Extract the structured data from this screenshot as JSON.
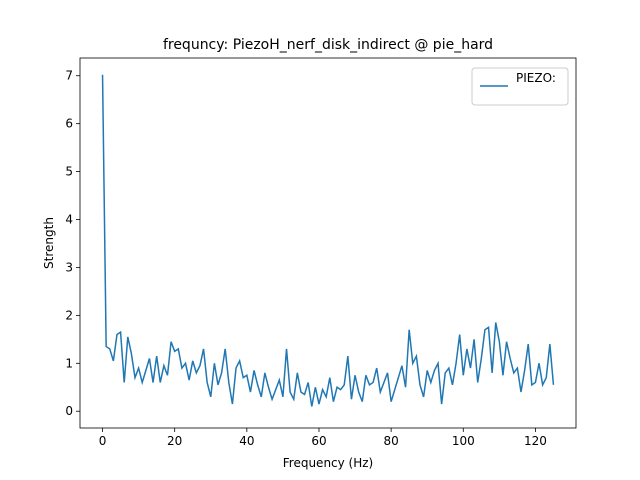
{
  "chart_data": {
    "type": "line",
    "title": "frequncy: PiezoH_nerf_disk_indirect @ pie_hard",
    "xlabel": "Frequency (Hz)",
    "ylabel": "Strength",
    "x": [
      0,
      1,
      2,
      3,
      4,
      5,
      6,
      7,
      8,
      9,
      10,
      11,
      12,
      13,
      14,
      15,
      16,
      17,
      18,
      19,
      20,
      21,
      22,
      23,
      24,
      25,
      26,
      27,
      28,
      29,
      30,
      31,
      32,
      33,
      34,
      35,
      36,
      37,
      38,
      39,
      40,
      41,
      42,
      43,
      44,
      45,
      46,
      47,
      48,
      49,
      50,
      51,
      52,
      53,
      54,
      55,
      56,
      57,
      58,
      59,
      60,
      61,
      62,
      63,
      64,
      65,
      66,
      67,
      68,
      69,
      70,
      71,
      72,
      73,
      74,
      75,
      76,
      77,
      78,
      79,
      80,
      81,
      82,
      83,
      84,
      85,
      86,
      87,
      88,
      89,
      90,
      91,
      92,
      93,
      94,
      95,
      96,
      97,
      98,
      99,
      100,
      101,
      102,
      103,
      104,
      105,
      106,
      107,
      108,
      109,
      110,
      111,
      112,
      113,
      114,
      115,
      116,
      117,
      118,
      119,
      120,
      121,
      122,
      123,
      124,
      125
    ],
    "series": [
      {
        "name": "PIEZO:",
        "color": "#1f77b4",
        "values": [
          7.02,
          1.35,
          1.3,
          1.05,
          1.6,
          1.65,
          0.6,
          1.55,
          1.2,
          0.7,
          0.9,
          0.6,
          0.85,
          1.1,
          0.6,
          1.15,
          0.6,
          0.95,
          0.75,
          1.45,
          1.25,
          1.3,
          0.9,
          1.0,
          0.65,
          1.05,
          0.8,
          0.95,
          1.3,
          0.6,
          0.3,
          1.0,
          0.55,
          0.8,
          1.3,
          0.6,
          0.15,
          0.9,
          1.05,
          0.7,
          0.75,
          0.4,
          0.85,
          0.55,
          0.3,
          0.8,
          0.5,
          0.25,
          0.45,
          0.65,
          0.3,
          1.3,
          0.4,
          0.25,
          0.8,
          0.4,
          0.35,
          0.6,
          0.1,
          0.5,
          0.15,
          0.45,
          0.3,
          0.7,
          0.2,
          0.5,
          0.45,
          0.55,
          1.15,
          0.25,
          0.75,
          0.4,
          0.2,
          0.75,
          0.55,
          0.6,
          0.9,
          0.4,
          0.6,
          0.8,
          0.2,
          0.45,
          0.7,
          0.95,
          0.5,
          1.7,
          1.0,
          1.15,
          0.55,
          0.3,
          0.85,
          0.6,
          0.85,
          1.0,
          0.15,
          0.8,
          0.9,
          0.55,
          1.0,
          1.6,
          0.75,
          1.3,
          0.9,
          1.5,
          0.6,
          1.1,
          1.7,
          1.75,
          0.8,
          1.85,
          1.45,
          0.75,
          1.45,
          1.1,
          0.8,
          0.9,
          0.4,
          0.85,
          1.4,
          0.55,
          0.6,
          1.0,
          0.55,
          0.7,
          1.4,
          0.55
        ]
      }
    ],
    "xlim": [
      -6.25,
      131.25
    ],
    "xticks": [
      0,
      20,
      40,
      60,
      80,
      100,
      120
    ],
    "ylim": [
      -0.35,
      7.37
    ],
    "yticks": [
      0,
      1,
      2,
      3,
      4,
      5,
      6,
      7
    ],
    "legend": "upper right"
  }
}
